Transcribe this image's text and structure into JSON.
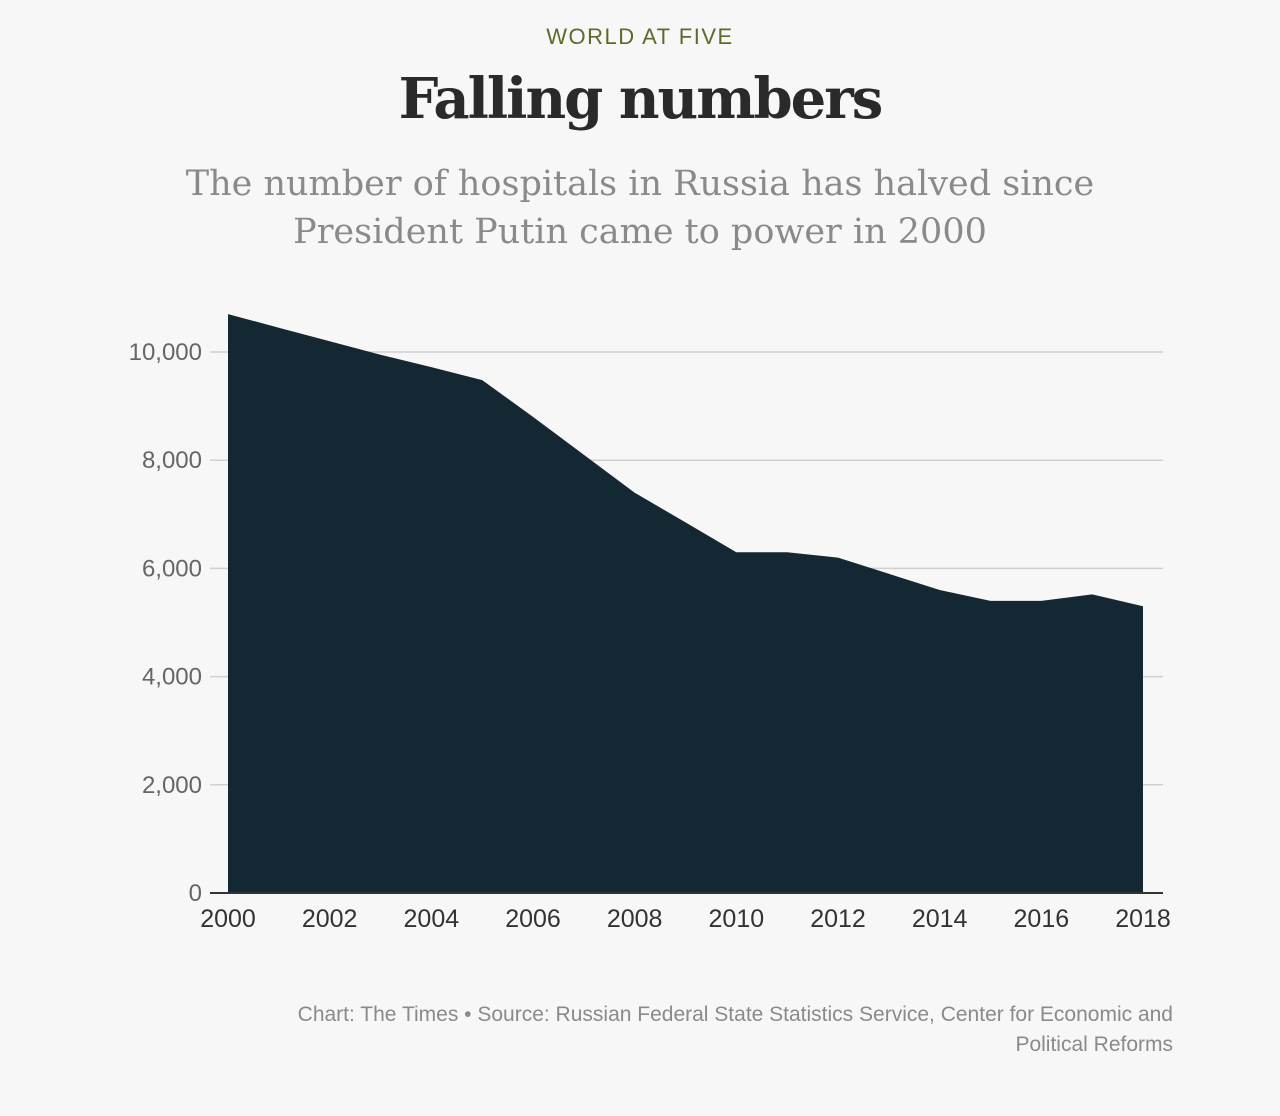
{
  "header": {
    "kicker": "WORLD AT FIVE",
    "title": "Falling numbers",
    "subtitle": "The number of hospitals in Russia has halved since President Putin came to power in 2000"
  },
  "chart_data": {
    "type": "area",
    "title": "Falling numbers",
    "subtitle": "The number of hospitals in Russia has halved since President Putin came to power in 2000",
    "xlabel": "",
    "ylabel": "",
    "x": [
      2000,
      2001,
      2002,
      2003,
      2004,
      2005,
      2006,
      2007,
      2008,
      2009,
      2010,
      2011,
      2012,
      2013,
      2014,
      2015,
      2016,
      2017,
      2018
    ],
    "series": [
      {
        "values": [
          10700,
          10450,
          10200,
          9950,
          9720,
          9480,
          8800,
          8100,
          7400,
          6850,
          6300,
          6300,
          6200,
          5900,
          5600,
          5400,
          5400,
          5520,
          5300
        ]
      }
    ],
    "xlim": [
      2000,
      2018
    ],
    "ylim": [
      0,
      10000
    ],
    "x_ticks": [
      "2000",
      "2002",
      "2004",
      "2006",
      "2008",
      "2010",
      "2012",
      "2014",
      "2016",
      "2018"
    ],
    "y_ticks": [
      "0",
      "2,000",
      "4,000",
      "6,000",
      "8,000",
      "10,000"
    ],
    "grid": true,
    "legend": "none",
    "fill_color": "#142834"
  },
  "footer": {
    "source_line1": "Chart: The Times • Source: Russian Federal State Statistics Service, Center for Economic and",
    "source_line2": "Political Reforms"
  }
}
